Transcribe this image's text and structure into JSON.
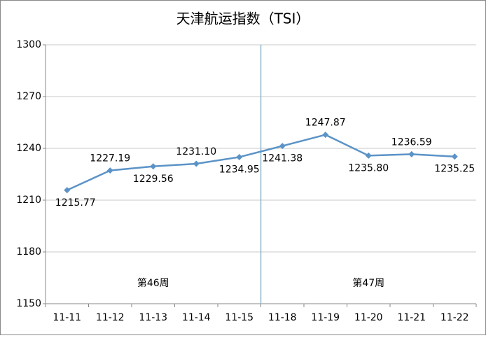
{
  "chart_data": {
    "type": "line",
    "title": "天津航运指数（TSI）",
    "categories": [
      "11-11",
      "11-12",
      "11-13",
      "11-14",
      "11-15",
      "11-18",
      "11-19",
      "11-20",
      "11-21",
      "11-22"
    ],
    "series": [
      {
        "name": "TSI",
        "color": "#5b93c7",
        "values": [
          1215.77,
          1227.19,
          1229.56,
          1231.1,
          1234.95,
          1241.38,
          1247.87,
          1235.8,
          1236.59,
          1235.25
        ],
        "value_labels": [
          "1215.77",
          "1227.19",
          "1229.56",
          "1231.10",
          "1234.95",
          "1241.38",
          "1247.87",
          "1235.80",
          "1236.59",
          "1235.25"
        ]
      }
    ],
    "ylim": [
      1150,
      1300
    ],
    "yticks": [
      1150,
      1180,
      1210,
      1240,
      1270,
      1300
    ],
    "grid": true,
    "annotations": [
      "第46周",
      "第47周"
    ]
  }
}
